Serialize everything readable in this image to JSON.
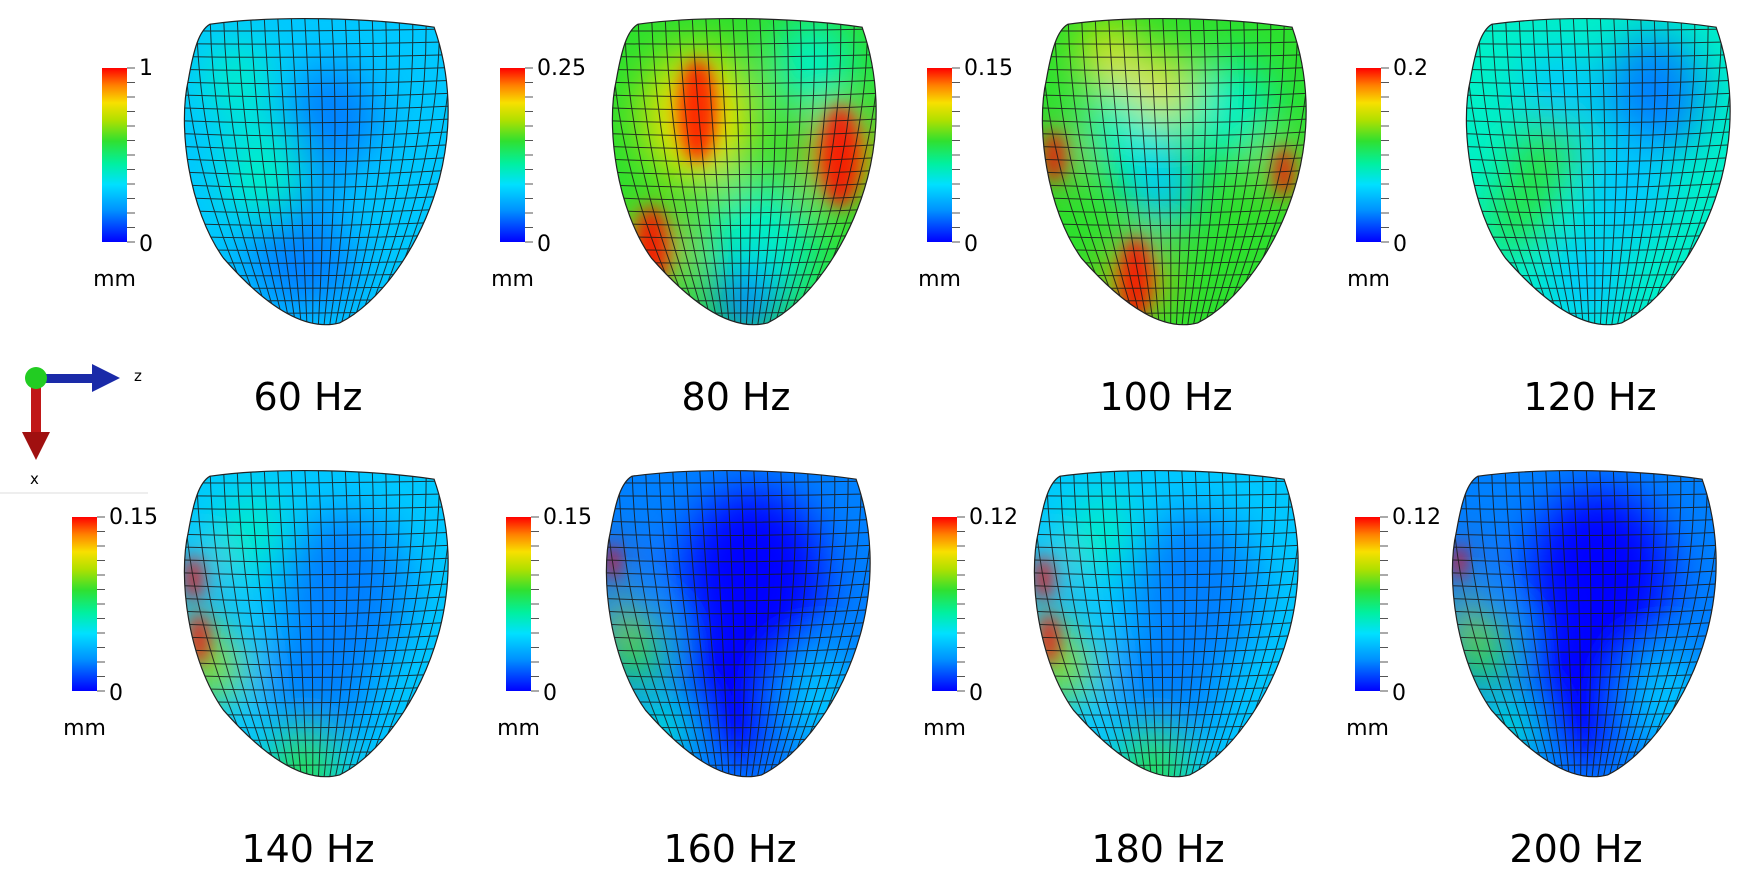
{
  "axes_glyph": {
    "right_label": "z",
    "down_label": "x"
  },
  "colormap": [
    "#0000ff",
    "#0080ff",
    "#00c8ff",
    "#00f0c8",
    "#2de02d",
    "#a0e000",
    "#f0e000",
    "#ff9000",
    "#ff0000"
  ],
  "panels": [
    {
      "frequency": "60 Hz",
      "scale_max": "1",
      "scale_min": "0",
      "unit": "mm",
      "pattern": "low"
    },
    {
      "frequency": "80 Hz",
      "scale_max": "0.25",
      "scale_min": "0",
      "unit": "mm",
      "pattern": "hot-left"
    },
    {
      "frequency": "100 Hz",
      "scale_max": "0.15",
      "scale_min": "0",
      "unit": "mm",
      "pattern": "mid"
    },
    {
      "frequency": "120 Hz",
      "scale_max": "0.2",
      "scale_min": "0",
      "unit": "mm",
      "pattern": "low-mid"
    },
    {
      "frequency": "140 Hz",
      "scale_max": "0.15",
      "scale_min": "0",
      "unit": "mm",
      "pattern": "edge"
    },
    {
      "frequency": "160 Hz",
      "scale_max": "0.15",
      "scale_min": "0",
      "unit": "mm",
      "pattern": "edge-blue"
    },
    {
      "frequency": "180 Hz",
      "scale_max": "0.12",
      "scale_min": "0",
      "unit": "mm",
      "pattern": "edge"
    },
    {
      "frequency": "200 Hz",
      "scale_max": "0.12",
      "scale_min": "0",
      "unit": "mm",
      "pattern": "edge-blue"
    }
  ]
}
